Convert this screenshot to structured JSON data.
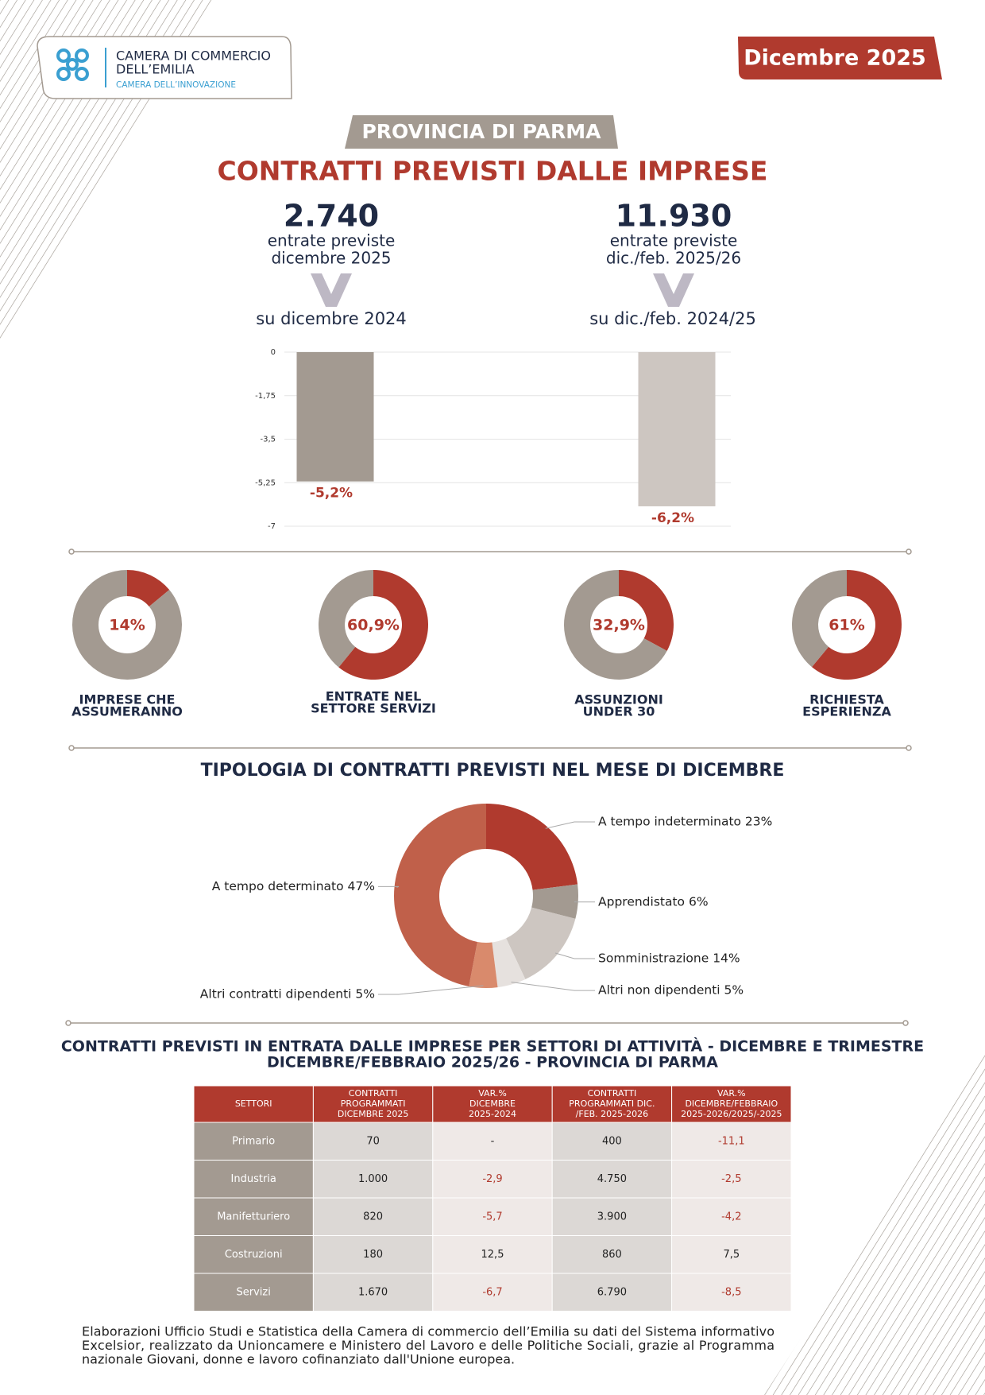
{
  "header": {
    "logo_line1": "CAMERA DI COMMERCIO",
    "logo_line2": "DELL’EMILIA",
    "logo_sub": "CAMERA DELL’INNOVAZIONE",
    "date": "Dicembre 2025"
  },
  "province": "PROVINCIA DI PARMA",
  "title": "CONTRATTI PREVISTI DALLE IMPRESE",
  "kpis": [
    {
      "value": "2.740",
      "line1": "entrate previste",
      "line2": "dicembre 2025"
    },
    {
      "value": "11.930",
      "line1": "entrate previste",
      "line2": "dic./feb. 2025/26"
    }
  ],
  "chart_data": [
    {
      "type": "bar",
      "categories": [
        "su dicembre 2024",
        "su dic./feb. 2024/25"
      ],
      "values": [
        -5.2,
        -6.2
      ],
      "value_labels": [
        "-5,2%",
        "-6,2%"
      ],
      "colors": [
        "#a39a91",
        "#cdc6c1"
      ],
      "ylim": [
        -7,
        0
      ],
      "yticks": [
        0,
        {
          "value": -1.75,
          "label": "-1,75"
        },
        {
          "value": -3.5,
          "label": "-3,5"
        },
        {
          "value": -5.25,
          "label": "-5,25"
        },
        -7
      ],
      "grid": true
    },
    {
      "type": "donut",
      "title_lines": [
        "IMPRESE CHE",
        "ASSUMERANNO"
      ],
      "values": [
        14,
        86
      ],
      "value_labels": [
        "14%",
        null
      ],
      "colors": [
        "#b03a2e",
        "#a39a91"
      ]
    },
    {
      "type": "donut",
      "title_lines": [
        "ENTRATE NEL",
        "SETTORE SERVIZI"
      ],
      "values": [
        60.9,
        39.1
      ],
      "value_labels": [
        "60,9%",
        null
      ],
      "colors": [
        "#b03a2e",
        "#a39a91"
      ]
    },
    {
      "type": "donut",
      "title_lines": [
        "ASSUNZIONI",
        "UNDER 30"
      ],
      "values": [
        32.9,
        67.1
      ],
      "value_labels": [
        "32,9%",
        null
      ],
      "colors": [
        "#b03a2e",
        "#a39a91"
      ]
    },
    {
      "type": "donut",
      "title_lines": [
        "RICHIESTA",
        "ESPERIENZA"
      ],
      "values": [
        61,
        39
      ],
      "value_labels": [
        "61%",
        null
      ],
      "colors": [
        "#b03a2e",
        "#a39a91"
      ]
    },
    {
      "type": "donut",
      "title": "TIPOLOGIA DI CONTRATTI PREVISTI NEL MESE DI DICEMBRE",
      "labels": [
        "A tempo indeterminato 23%",
        "Apprendistato 6%",
        "Somministrazione 14%",
        "Altri non dipendenti 5%",
        "Altri contratti dipendenti 5%",
        "A tempo determinato 47%"
      ],
      "values": [
        23,
        6,
        14,
        5,
        5,
        47
      ],
      "colors": [
        "#b03a2e",
        "#a39a91",
        "#cdc6c1",
        "#e6e1de",
        "#d98a6c",
        "#c0604a"
      ]
    }
  ],
  "table": {
    "title_lines": [
      "CONTRATTI PREVISTI IN ENTRATA DALLE IMPRESE PER SETTORI DI ATTIVITÀ - DICEMBRE E TRIMESTRE",
      "DICEMBRE/FEBBRAIO 2025/26 - PROVINCIA DI PARMA"
    ],
    "header": [
      [
        "SETTORI"
      ],
      [
        "CONTRATTI",
        "PROGRAMMATI",
        "DICEMBRE 2025"
      ],
      [
        "VAR.%",
        "DICEMBRE",
        "2025-2024"
      ],
      [
        "CONTRATTI",
        "PROGRAMMATI DIC.",
        "/FEB. 2025-2026"
      ],
      [
        "VAR.%",
        "DICEMBRE/FEBBRAIO",
        "2025-2026/2025/-2025"
      ]
    ],
    "rows": [
      [
        "Primario",
        "70",
        "-",
        "400",
        "-11,1"
      ],
      [
        "Industria",
        "1.000",
        "-2,9",
        "4.750",
        "-2,5"
      ],
      [
        "Manifetturiero",
        "820",
        "-5,7",
        "3.900",
        "-4,2"
      ],
      [
        "Costruzioni",
        "180",
        "12,5",
        "860",
        "7,5"
      ],
      [
        "Servizi",
        "1.670",
        "-6,7",
        "6.790",
        "-8,5"
      ]
    ]
  },
  "footer": [
    "Elaborazioni Ufficio Studi e Statistica della Camera di commercio dell’Emilia su dati del Sistema informativo",
    "Excelsior, realizzato da Unioncamere e Ministero del Lavoro e delle Politiche Sociali, grazie al Programma",
    "nazionale Giovani, donne e lavoro cofinanziato dall'Unione europea."
  ]
}
